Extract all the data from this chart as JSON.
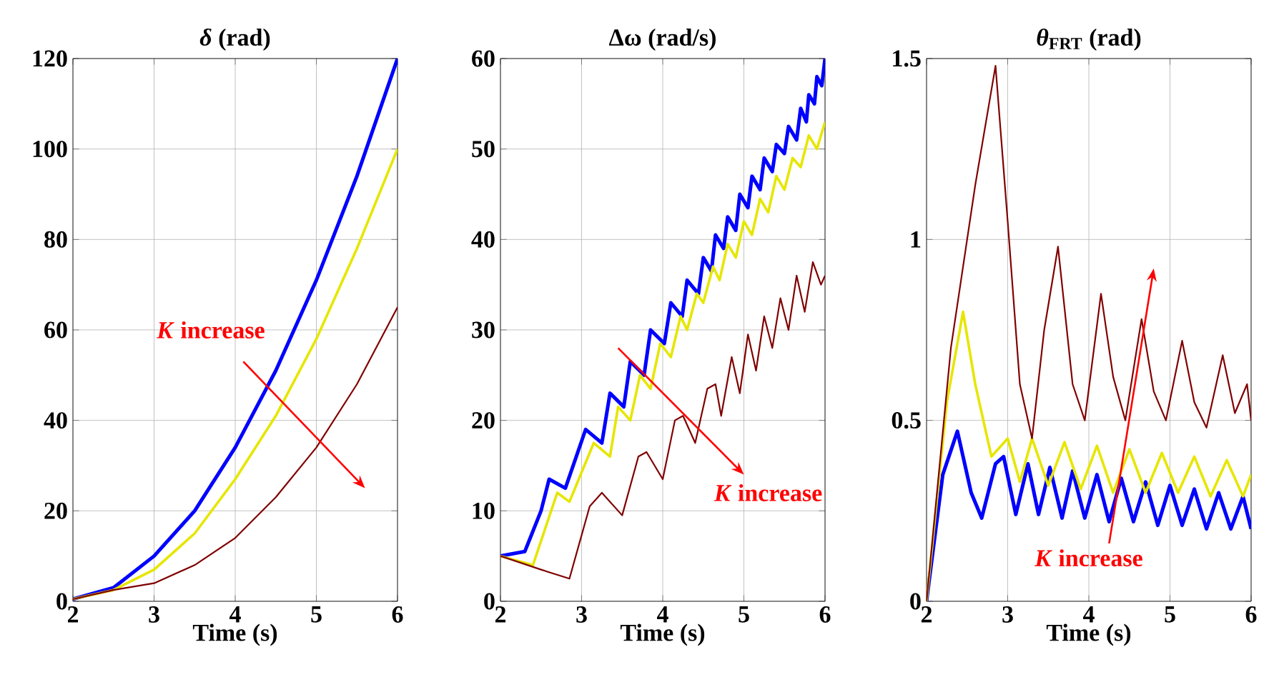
{
  "chart_data": [
    {
      "type": "line",
      "title": "*δ* (rad)",
      "xlabel": "Time (s)",
      "xlim": [
        2,
        6
      ],
      "xticks": [
        2,
        3,
        4,
        5,
        6
      ],
      "ylim": [
        0,
        120
      ],
      "yticks": [
        0,
        20,
        40,
        60,
        80,
        100,
        120
      ],
      "grid": true,
      "annotations": [
        "*K* increase"
      ],
      "series": [
        {
          "color": "#0000ff",
          "x": [
            2,
            2.5,
            3,
            3.5,
            4,
            4.5,
            5,
            5.5,
            6
          ],
          "values": [
            0.5,
            3,
            10,
            20,
            34,
            51,
            71,
            94,
            120
          ]
        },
        {
          "color": "#e6e600",
          "x": [
            2,
            2.5,
            3,
            3.5,
            4,
            4.5,
            5,
            5.5,
            6
          ],
          "values": [
            0.5,
            2.5,
            7,
            15,
            27,
            41,
            58,
            78,
            100
          ]
        },
        {
          "color": "#800000",
          "x": [
            2,
            2.5,
            3,
            3.5,
            4,
            4.5,
            5,
            5.5,
            6
          ],
          "values": [
            0.5,
            2.5,
            4,
            8,
            14,
            23,
            34,
            48,
            65
          ]
        }
      ]
    },
    {
      "type": "line",
      "title": "Δω (rad/s)",
      "xlabel": "Time (s)",
      "xlim": [
        2,
        6
      ],
      "xticks": [
        2,
        3,
        4,
        5,
        6
      ],
      "ylim": [
        0,
        60
      ],
      "yticks": [
        0,
        10,
        20,
        30,
        40,
        50,
        60
      ],
      "grid": true,
      "annotations": [
        "*K* increase"
      ],
      "series": [
        {
          "color": "#0000ff",
          "x": [
            2,
            2.3,
            2.5,
            2.6,
            2.8,
            3.05,
            3.25,
            3.35,
            3.52,
            3.6,
            3.77,
            3.85,
            4.02,
            4.1,
            4.24,
            4.3,
            4.44,
            4.5,
            4.6,
            4.65,
            4.75,
            4.8,
            4.9,
            4.95,
            5.05,
            5.1,
            5.2,
            5.25,
            5.35,
            5.4,
            5.5,
            5.55,
            5.65,
            5.7,
            5.77,
            5.8,
            5.87,
            5.9,
            5.96,
            6
          ],
          "values": [
            5,
            5.5,
            10,
            13.5,
            12.5,
            19,
            17.5,
            23,
            21.5,
            26.5,
            25,
            30,
            28.5,
            33,
            31.5,
            35.5,
            34,
            38,
            36.5,
            40.5,
            39,
            42.5,
            41,
            45,
            43.5,
            47,
            45.5,
            49,
            47.5,
            50.5,
            49.5,
            52.5,
            51,
            54.5,
            53,
            56,
            55,
            58,
            57,
            60
          ]
        },
        {
          "color": "#e6e600",
          "x": [
            2,
            2.4,
            2.7,
            2.85,
            3.15,
            3.35,
            3.45,
            3.6,
            3.72,
            3.85,
            3.97,
            4.1,
            4.22,
            4.3,
            4.42,
            4.5,
            4.62,
            4.7,
            4.8,
            4.9,
            5.0,
            5.1,
            5.2,
            5.3,
            5.4,
            5.5,
            5.6,
            5.7,
            5.8,
            5.9,
            6
          ],
          "values": [
            5,
            4,
            12,
            11,
            17.5,
            16,
            21.5,
            20,
            25,
            23.5,
            28.5,
            27,
            31.5,
            30,
            34,
            33,
            37,
            35.5,
            39.5,
            38,
            42,
            40.5,
            44.5,
            43,
            47,
            45.5,
            49,
            48,
            51.5,
            50,
            53
          ]
        },
        {
          "color": "#800000",
          "x": [
            2,
            2.5,
            2.85,
            3.1,
            3.25,
            3.5,
            3.7,
            3.8,
            4.0,
            4.15,
            4.25,
            4.4,
            4.55,
            4.65,
            4.72,
            4.85,
            4.95,
            5.05,
            5.15,
            5.25,
            5.35,
            5.45,
            5.55,
            5.65,
            5.75,
            5.85,
            5.95,
            6
          ],
          "values": [
            5,
            3.5,
            2.5,
            10.5,
            12,
            9.5,
            16,
            16.5,
            13.5,
            20,
            20.5,
            17.5,
            23.5,
            24,
            20.5,
            27,
            23,
            29.5,
            25.5,
            31.5,
            28,
            33.5,
            30,
            36,
            32,
            37.5,
            35,
            36
          ]
        }
      ]
    },
    {
      "type": "line",
      "title": "*θ*$_{FRT}$ (rad)",
      "xlabel": "Time (s)",
      "xlim": [
        2,
        6
      ],
      "xticks": [
        2,
        3,
        4,
        5,
        6
      ],
      "ylim": [
        0,
        1.5
      ],
      "yticks": [
        0,
        0.5,
        1,
        1.5
      ],
      "grid": true,
      "annotations": [
        "*K* increase"
      ],
      "series": [
        {
          "color": "#0000ff",
          "x": [
            2,
            2.2,
            2.38,
            2.55,
            2.68,
            2.85,
            2.95,
            3.1,
            3.25,
            3.38,
            3.52,
            3.67,
            3.8,
            3.95,
            4.1,
            4.25,
            4.4,
            4.55,
            4.7,
            4.85,
            5.0,
            5.15,
            5.3,
            5.45,
            5.6,
            5.75,
            5.9,
            6
          ],
          "values": [
            0,
            0.35,
            0.47,
            0.3,
            0.23,
            0.38,
            0.4,
            0.24,
            0.38,
            0.24,
            0.37,
            0.23,
            0.36,
            0.23,
            0.35,
            0.22,
            0.34,
            0.22,
            0.33,
            0.21,
            0.32,
            0.21,
            0.31,
            0.2,
            0.3,
            0.2,
            0.29,
            0.2
          ]
        },
        {
          "color": "#e6e600",
          "x": [
            2,
            2.25,
            2.45,
            2.6,
            2.8,
            3.0,
            3.15,
            3.3,
            3.5,
            3.7,
            3.9,
            4.1,
            4.3,
            4.5,
            4.7,
            4.9,
            5.1,
            5.3,
            5.5,
            5.7,
            5.9,
            6
          ],
          "values": [
            0,
            0.55,
            0.8,
            0.6,
            0.4,
            0.45,
            0.33,
            0.45,
            0.32,
            0.44,
            0.31,
            0.43,
            0.3,
            0.42,
            0.3,
            0.41,
            0.3,
            0.4,
            0.29,
            0.39,
            0.29,
            0.35
          ]
        },
        {
          "color": "#800000",
          "x": [
            2,
            2.3,
            2.6,
            2.85,
            3.0,
            3.15,
            3.3,
            3.45,
            3.62,
            3.8,
            3.95,
            4.15,
            4.3,
            4.45,
            4.65,
            4.8,
            4.95,
            5.15,
            5.3,
            5.45,
            5.65,
            5.8,
            5.95,
            6
          ],
          "values": [
            0,
            0.7,
            1.15,
            1.48,
            1.05,
            0.6,
            0.45,
            0.75,
            0.98,
            0.6,
            0.5,
            0.85,
            0.62,
            0.5,
            0.78,
            0.58,
            0.5,
            0.72,
            0.55,
            0.48,
            0.68,
            0.52,
            0.6,
            0.5
          ]
        }
      ]
    }
  ]
}
